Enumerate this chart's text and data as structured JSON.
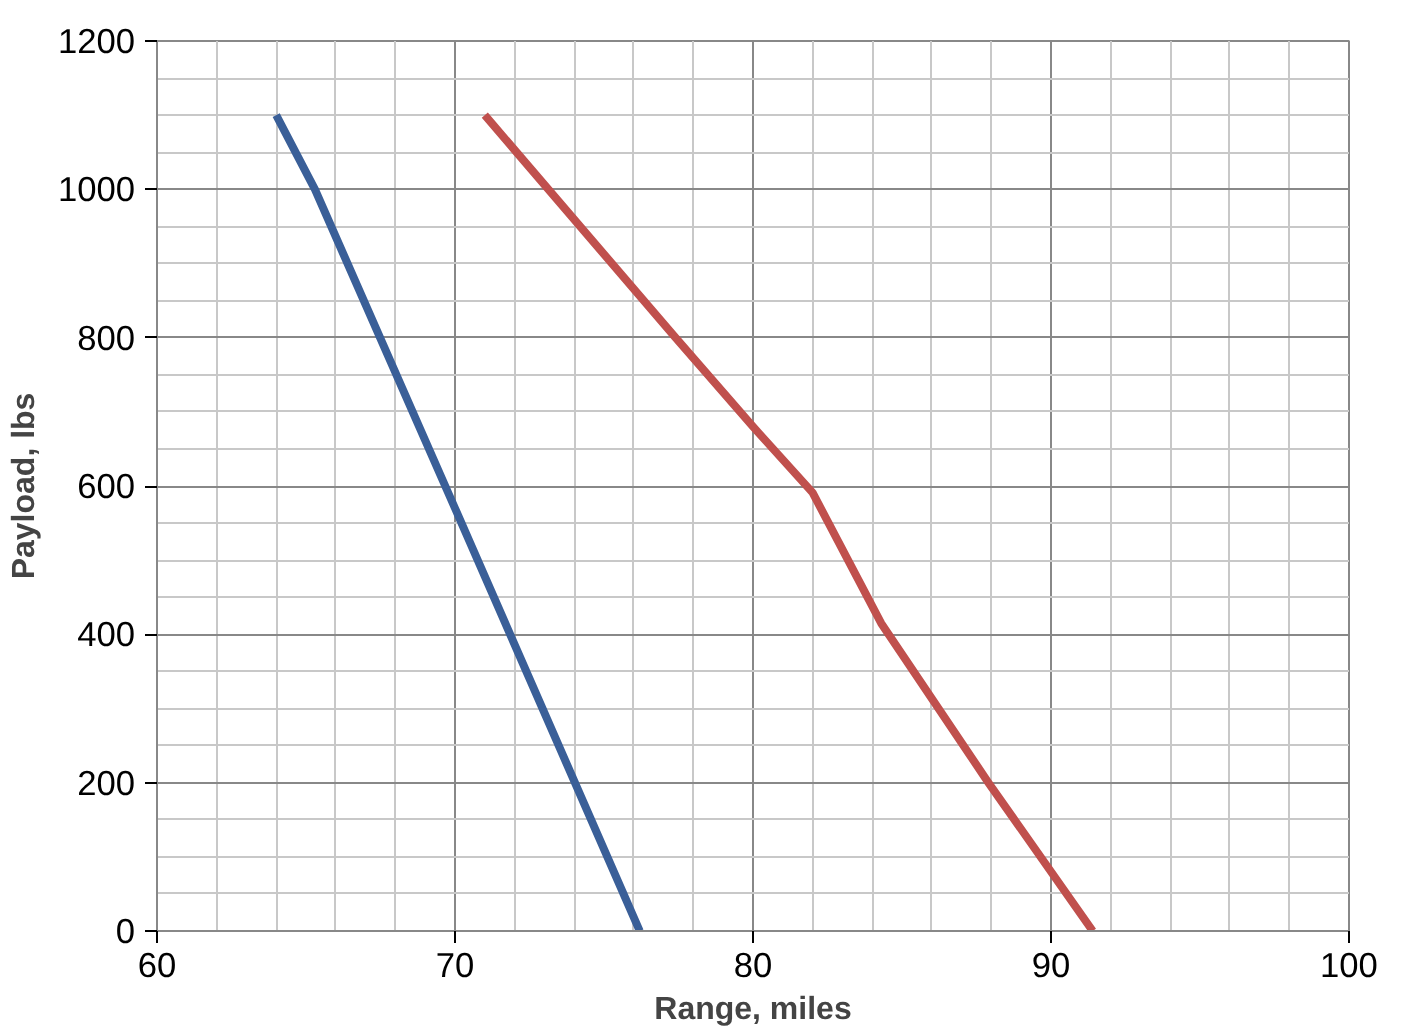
{
  "chart_data": {
    "type": "line",
    "xlabel": "Range, miles",
    "ylabel": "Payload, lbs",
    "xlim": [
      60,
      100
    ],
    "xticks": [
      60,
      70,
      80,
      90,
      100
    ],
    "ylim": [
      0,
      1200
    ],
    "yticks": [
      0,
      200,
      400,
      600,
      800,
      1000,
      1200
    ],
    "grid": true,
    "marker": "none",
    "line_style": "solid",
    "series": [
      {
        "color": "#3a5f98",
        "x": [
          64,
          65.3,
          70,
          76.2
        ],
        "values": [
          1100,
          1000,
          570,
          0
        ]
      },
      {
        "color": "#c0504d",
        "x": [
          71,
          77.4,
          80,
          82,
          84.3,
          87.9,
          91.4
        ],
        "values": [
          1100,
          800,
          680,
          591,
          415,
          200,
          0
        ]
      }
    ]
  }
}
